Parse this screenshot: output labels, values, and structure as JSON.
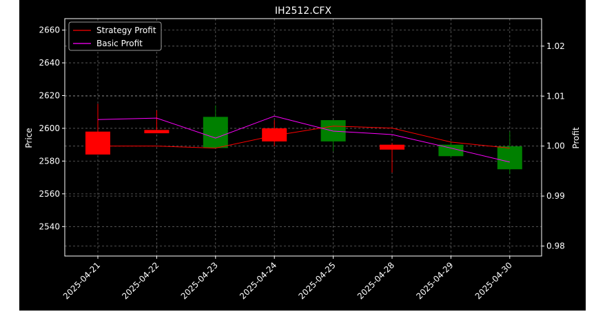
{
  "chart_data": {
    "type": "candlestick",
    "title": "IH2512.CFX",
    "xlabel": "",
    "ylabel_left": "Price",
    "ylabel_right": "Profit",
    "categories": [
      "2025-04-21",
      "2025-04-22",
      "2025-04-23",
      "2025-04-24",
      "2025-04-25",
      "2025-04-28",
      "2025-04-29",
      "2025-04-30"
    ],
    "ohlc": [
      {
        "open": 2598,
        "high": 2615,
        "low": 2584,
        "close": 2584
      },
      {
        "open": 2599,
        "high": 2611,
        "low": 2597,
        "close": 2597
      },
      {
        "open": 2588,
        "high": 2614,
        "low": 2588,
        "close": 2607
      },
      {
        "open": 2600,
        "high": 2605,
        "low": 2589,
        "close": 2592
      },
      {
        "open": 2592,
        "high": 2605,
        "low": 2586,
        "close": 2605
      },
      {
        "open": 2590,
        "high": 2591,
        "low": 2573,
        "close": 2587
      },
      {
        "open": 2583,
        "high": 2592,
        "low": 2582,
        "close": 2590
      },
      {
        "open": 2575,
        "high": 2598,
        "low": 2572,
        "close": 2589
      }
    ],
    "left_ylim": [
      2522,
      2667
    ],
    "left_yticks": [
      2540,
      2560,
      2580,
      2600,
      2620,
      2640,
      2660
    ],
    "right_ylim": [
      0.978,
      1.0255
    ],
    "right_yticks": [
      "0.98",
      "0.99",
      "1.00",
      "1.01",
      "1.02"
    ],
    "series": [
      {
        "name": "Strategy Profit",
        "color": "#ff0000",
        "axis": "right",
        "values": [
          1.0,
          1.0,
          0.9996,
          1.0021,
          1.004,
          1.0036,
          1.0008,
          0.9996
        ]
      },
      {
        "name": "Basic Profit",
        "color": "#ff00ff",
        "axis": "right",
        "values": [
          1.0053,
          1.0056,
          1.0016,
          1.006,
          1.003,
          1.0023,
          0.9996,
          0.9968
        ]
      }
    ],
    "up_color": "#008000",
    "down_color": "#ff0000",
    "grid": true,
    "legend": "top-left"
  }
}
